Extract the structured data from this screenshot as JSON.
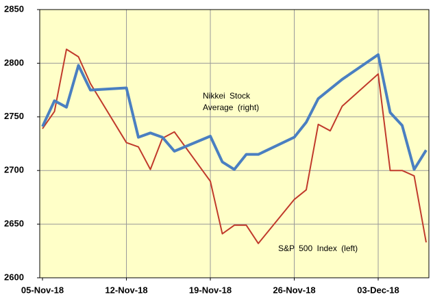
{
  "chart_data": {
    "type": "line",
    "xlim": [
      "2018-11-05",
      "2018-12-07"
    ],
    "xticks": [
      {
        "value": "2018-11-05",
        "label": "05-Nov-18"
      },
      {
        "value": "2018-11-12",
        "label": "12-Nov-18"
      },
      {
        "value": "2018-11-19",
        "label": "19-Nov-18"
      },
      {
        "value": "2018-11-26",
        "label": "26-Nov-18"
      },
      {
        "value": "2018-12-03",
        "label": "03-Dec-18"
      }
    ],
    "ylim": [
      2600,
      2850
    ],
    "yticks": [
      2600,
      2650,
      2700,
      2750,
      2800,
      2850
    ],
    "grid": true,
    "series": [
      {
        "name": "Nikkei Stock Average (right)",
        "color": "#4a7fc1",
        "width": 4,
        "x": [
          "2018-11-05",
          "2018-11-06",
          "2018-11-07",
          "2018-11-08",
          "2018-11-09",
          "2018-11-12",
          "2018-11-13",
          "2018-11-14",
          "2018-11-15",
          "2018-11-16",
          "2018-11-19",
          "2018-11-20",
          "2018-11-21",
          "2018-11-22",
          "2018-11-23",
          "2018-11-26",
          "2018-11-27",
          "2018-11-28",
          "2018-11-30",
          "2018-12-03",
          "2018-12-04",
          "2018-12-05",
          "2018-12-06",
          "2018-12-07"
        ],
        "values": [
          2741,
          2765,
          2759,
          2798,
          2775,
          2777,
          2731,
          2735,
          2731,
          2718,
          2732,
          2708,
          2701,
          2715,
          2715,
          2731,
          2745,
          2767,
          2785,
          2808,
          2754,
          2742,
          2701,
          2719
        ]
      },
      {
        "name": "S&P 500 Index (left)",
        "color": "#c0392b",
        "width": 2,
        "x": [
          "2018-11-05",
          "2018-11-06",
          "2018-11-07",
          "2018-11-08",
          "2018-11-09",
          "2018-11-12",
          "2018-11-13",
          "2018-11-14",
          "2018-11-15",
          "2018-11-16",
          "2018-11-19",
          "2018-11-20",
          "2018-11-21",
          "2018-11-22",
          "2018-11-23",
          "2018-11-26",
          "2018-11-27",
          "2018-11-28",
          "2018-11-29",
          "2018-11-30",
          "2018-12-03",
          "2018-12-04",
          "2018-12-05",
          "2018-12-06",
          "2018-12-07"
        ],
        "values": [
          2739,
          2755,
          2813,
          2806,
          2781,
          2726,
          2722,
          2701,
          2730,
          2736,
          2690,
          2641,
          2649,
          2649,
          2632,
          2673,
          2682,
          2743,
          2737,
          2760,
          2790,
          2700,
          2700,
          2695,
          2633
        ]
      }
    ]
  }
}
